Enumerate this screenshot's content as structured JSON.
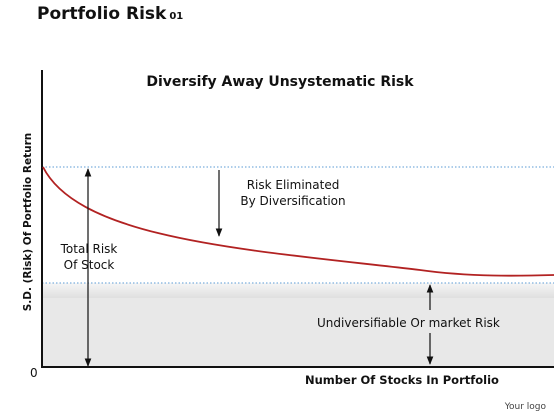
{
  "slide": {
    "title": "Portfolio Risk",
    "title_number": "01",
    "subtitle": "Diversify Away Unsystematic Risk",
    "y_axis_label": "S.D. (Risk) Of Portfolio Return",
    "x_axis_label": "Number Of Stocks In Portfolio",
    "origin_label": "0",
    "total_risk_label": [
      "Total Risk",
      "Of Stock"
    ],
    "risk_eliminated_label": [
      "Risk Eliminated",
      "By Diversification"
    ],
    "undiversifiable_label": "Undiversifiable Or market Risk",
    "logo_text": "Your logo"
  },
  "colors": {
    "curve": "#b22222",
    "guide_line": "#5b9bd5",
    "shade": "#e6e6e6",
    "axis": "#111111"
  }
}
